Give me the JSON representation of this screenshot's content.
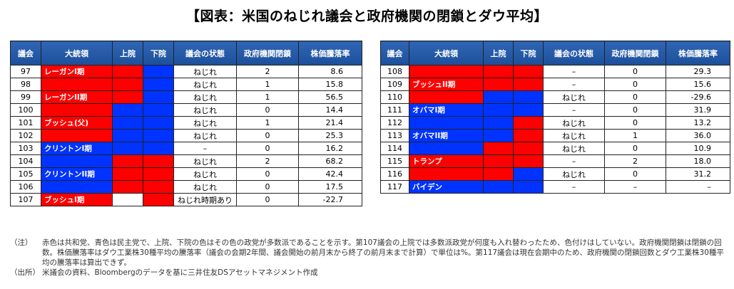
{
  "title": "【図表：米国のねじれ議会と政府機関の閉鎖とダウ平均】",
  "headers": [
    "議会",
    "大統領",
    "上院",
    "下院",
    "議会の状態",
    "政府機関閉鎖",
    "株価騰落率"
  ],
  "left_rows": [
    {
      "congress": "97",
      "president": "レーガンI期",
      "pres_color": "red",
      "senate": "red",
      "house": "blue",
      "status": "ねじれ",
      "shutdowns": "2",
      "change": "8.6"
    },
    {
      "congress": "98",
      "president": "",
      "pres_color": "red",
      "senate": "red",
      "house": "blue",
      "status": "ねじれ",
      "shutdowns": "1",
      "change": "15.8"
    },
    {
      "congress": "99",
      "president": "レーガンII期",
      "pres_color": "red",
      "senate": "red",
      "house": "blue",
      "status": "ねじれ",
      "shutdowns": "1",
      "change": "56.5"
    },
    {
      "congress": "100",
      "president": "",
      "pres_color": "red",
      "senate": "blue",
      "house": "blue",
      "status": "ねじれ",
      "shutdowns": "0",
      "change": "14.4"
    },
    {
      "congress": "101",
      "president": "ブッシュ(父)",
      "pres_color": "red",
      "senate": "blue",
      "house": "blue",
      "status": "ねじれ",
      "shutdowns": "1",
      "change": "21.4"
    },
    {
      "congress": "102",
      "president": "",
      "pres_color": "red",
      "senate": "blue",
      "house": "blue",
      "status": "ねじれ",
      "shutdowns": "0",
      "change": "25.3"
    },
    {
      "congress": "103",
      "president": "クリントンI期",
      "pres_color": "blue",
      "senate": "blue",
      "house": "blue",
      "status": "–",
      "shutdowns": "0",
      "change": "16.2"
    },
    {
      "congress": "104",
      "president": "",
      "pres_color": "blue",
      "senate": "red",
      "house": "red",
      "status": "ねじれ",
      "shutdowns": "2",
      "change": "68.2"
    },
    {
      "congress": "105",
      "president": "クリントンII期",
      "pres_color": "blue",
      "senate": "red",
      "house": "red",
      "status": "ねじれ",
      "shutdowns": "0",
      "change": "42.4"
    },
    {
      "congress": "106",
      "president": "",
      "pres_color": "blue",
      "senate": "red",
      "house": "red",
      "status": "ねじれ",
      "shutdowns": "0",
      "change": "17.5"
    },
    {
      "congress": "107",
      "president": "ブッシュI期",
      "pres_color": "red",
      "senate": "white",
      "house": "red",
      "status": "ねじれ時期あり",
      "shutdowns": "0",
      "change": "-22.7"
    }
  ],
  "right_rows": [
    {
      "congress": "108",
      "president": "",
      "pres_color": "red",
      "senate": "red",
      "house": "red",
      "status": "–",
      "shutdowns": "0",
      "change": "29.3"
    },
    {
      "congress": "109",
      "president": "ブッシュII期",
      "pres_color": "red",
      "senate": "red",
      "house": "red",
      "status": "–",
      "shutdowns": "0",
      "change": "15.6"
    },
    {
      "congress": "110",
      "president": "",
      "pres_color": "red",
      "senate": "blue",
      "house": "blue",
      "status": "ねじれ",
      "shutdowns": "0",
      "change": "-29.6"
    },
    {
      "congress": "111",
      "president": "オバマI期",
      "pres_color": "blue",
      "senate": "blue",
      "house": "blue",
      "status": "–",
      "shutdowns": "0",
      "change": "31.9"
    },
    {
      "congress": "112",
      "president": "",
      "pres_color": "blue",
      "senate": "blue",
      "house": "red",
      "status": "ねじれ",
      "shutdowns": "0",
      "change": "13.2"
    },
    {
      "congress": "113",
      "president": "オバマII期",
      "pres_color": "blue",
      "senate": "blue",
      "house": "red",
      "status": "ねじれ",
      "shutdowns": "1",
      "change": "36.0"
    },
    {
      "congress": "114",
      "president": "",
      "pres_color": "blue",
      "senate": "red",
      "house": "red",
      "status": "ねじれ",
      "shutdowns": "0",
      "change": "10.9"
    },
    {
      "congress": "115",
      "president": "トランプ",
      "pres_color": "red",
      "senate": "red",
      "house": "red",
      "status": "–",
      "shutdowns": "2",
      "change": "18.0"
    },
    {
      "congress": "116",
      "president": "",
      "pres_color": "red",
      "senate": "red",
      "house": "blue",
      "status": "ねじれ",
      "shutdowns": "0",
      "change": "31.2"
    },
    {
      "congress": "117",
      "president": "バイデン",
      "pres_color": "blue",
      "senate": "blue",
      "house": "blue",
      "status": "–",
      "shutdowns": "–",
      "change": "–"
    }
  ],
  "notes": {
    "note_label": "（注）",
    "note_text": "赤色は共和党、青色は民主党で、上院、下院の色はその色の政党が多数派であることを示す。第107議会の上院では多数派政党が何度も入れ替わったため、色付けはしていない。政府機関閉鎖は閉鎖の回数。株価騰落率はダウ工業株30種平均の騰落率（議会の会期2年間、議会開始の前月末から終了の前月末まで計算）で単位は%。第117議会は現在会期中のため、政府機関の閉鎖回数とダウ工業株30種平均の騰落率は算出できず。",
    "source_label": "（出所）",
    "source_text": "米議会の資料、Bloombergのデータを基に三井住友DSアセットマネジメント作成"
  },
  "colors": {
    "republican": "#ff0000",
    "democrat": "#0033ff",
    "header": "#1c4f9b"
  }
}
